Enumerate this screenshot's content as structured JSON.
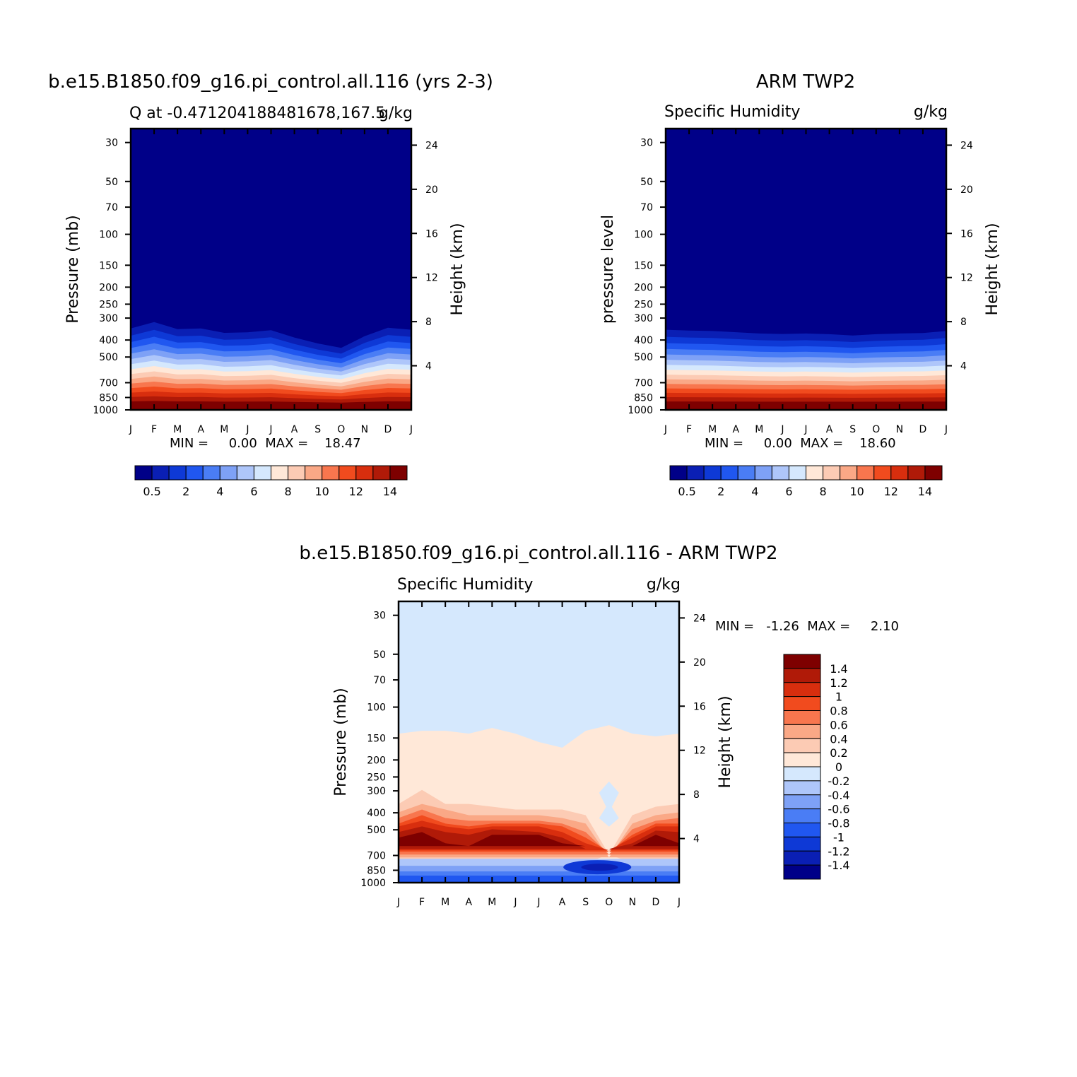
{
  "chart_data": [
    {
      "type": "heatmap",
      "id": "p1",
      "title": "b.e15.B1850.f09_g16.pi_control.all.116 (yrs 2-3)",
      "left_label": "Q at -0.471204188481678,167.5",
      "right_label": "g/kg",
      "ylabel": "Pressure (mb)",
      "ylabel_right": "Height (km)",
      "x_ticks": [
        "J",
        "F",
        "M",
        "A",
        "M",
        "J",
        "J",
        "A",
        "S",
        "O",
        "N",
        "D",
        "J"
      ],
      "p_ticks": [
        30,
        50,
        70,
        100,
        150,
        200,
        250,
        300,
        400,
        500,
        700,
        850,
        1000
      ],
      "p_tick_labels": [
        "30",
        "50",
        "70",
        "100",
        "150",
        "200",
        "250",
        "300",
        "400",
        "500",
        "700",
        "850",
        "1000"
      ],
      "h_ticks": [
        24,
        20,
        16,
        12,
        8,
        4
      ],
      "h_tick_labels": [
        "24",
        "20",
        "16",
        "12",
        "8",
        "4"
      ],
      "stats": "MIN =     0.00  MAX =    18.47",
      "colorbar": {
        "labels": [
          "0.5",
          "2",
          "4",
          "6",
          "8",
          "10",
          "12",
          "14"
        ]
      }
    },
    {
      "type": "heatmap",
      "id": "p2",
      "title": "ARM TWP2",
      "left_label": "Specific Humidity",
      "right_label": "g/kg",
      "ylabel": "pressure level",
      "ylabel_right": "Height (km)",
      "x_ticks": [
        "J",
        "F",
        "M",
        "A",
        "M",
        "J",
        "J",
        "A",
        "S",
        "O",
        "N",
        "D",
        "J"
      ],
      "p_ticks": [
        30,
        50,
        70,
        100,
        150,
        200,
        250,
        300,
        400,
        500,
        700,
        850,
        1000
      ],
      "p_tick_labels": [
        "30",
        "50",
        "70",
        "100",
        "150",
        "200",
        "250",
        "300",
        "400",
        "500",
        "700",
        "850",
        "1000"
      ],
      "h_ticks": [
        24,
        20,
        16,
        12,
        8,
        4
      ],
      "h_tick_labels": [
        "24",
        "20",
        "16",
        "12",
        "8",
        "4"
      ],
      "stats": "MIN =     0.00  MAX =    18.60",
      "colorbar": {
        "labels": [
          "0.5",
          "2",
          "4",
          "6",
          "8",
          "10",
          "12",
          "14"
        ]
      }
    },
    {
      "type": "heatmap",
      "id": "p3",
      "title": "b.e15.B1850.f09_g16.pi_control.all.116 - ARM TWP2",
      "left_label": "Specific Humidity",
      "right_label": "g/kg",
      "ylabel": "Pressure (mb)",
      "ylabel_right": "Height (km)",
      "x_ticks": [
        "J",
        "F",
        "M",
        "A",
        "M",
        "J",
        "J",
        "A",
        "S",
        "O",
        "N",
        "D",
        "J"
      ],
      "p_ticks": [
        30,
        50,
        70,
        100,
        150,
        200,
        250,
        300,
        400,
        500,
        700,
        850,
        1000
      ],
      "p_tick_labels": [
        "30",
        "50",
        "70",
        "100",
        "150",
        "200",
        "250",
        "300",
        "400",
        "500",
        "700",
        "850",
        "1000"
      ],
      "h_ticks": [
        24,
        20,
        16,
        12,
        8,
        4
      ],
      "h_tick_labels": [
        "24",
        "20",
        "16",
        "12",
        "8",
        "4"
      ],
      "stats": "MIN =   -1.26  MAX =     2.10",
      "colorbar": {
        "labels": [
          "1.4",
          "1.2",
          "1",
          "0.8",
          "0.6",
          "0.4",
          "0.2",
          "0",
          "-0.2",
          "-0.4",
          "-0.6",
          "-0.8",
          "-1",
          "-1.2",
          "-1.4"
        ]
      }
    }
  ],
  "palettes": {
    "humidity": [
      "#000088",
      "#0a1fb4",
      "#0e39d6",
      "#2057f0",
      "#4a7df5",
      "#7ea1f6",
      "#aec6fa",
      "#d5e8fd",
      "#ffe8d8",
      "#fccbb4",
      "#faa886",
      "#f8764e",
      "#f14b1e",
      "#d82e0e",
      "#b01a08",
      "#7e0000"
    ],
    "diff": [
      "#7e0000",
      "#b01a08",
      "#d82e0e",
      "#f14b1e",
      "#f8764e",
      "#faa886",
      "#fccbb4",
      "#ffe8d8",
      "#d5e8fd",
      "#aec6fa",
      "#7ea1f6",
      "#4a7df5",
      "#2057f0",
      "#0e39d6",
      "#0a1fb4",
      "#000088"
    ]
  }
}
